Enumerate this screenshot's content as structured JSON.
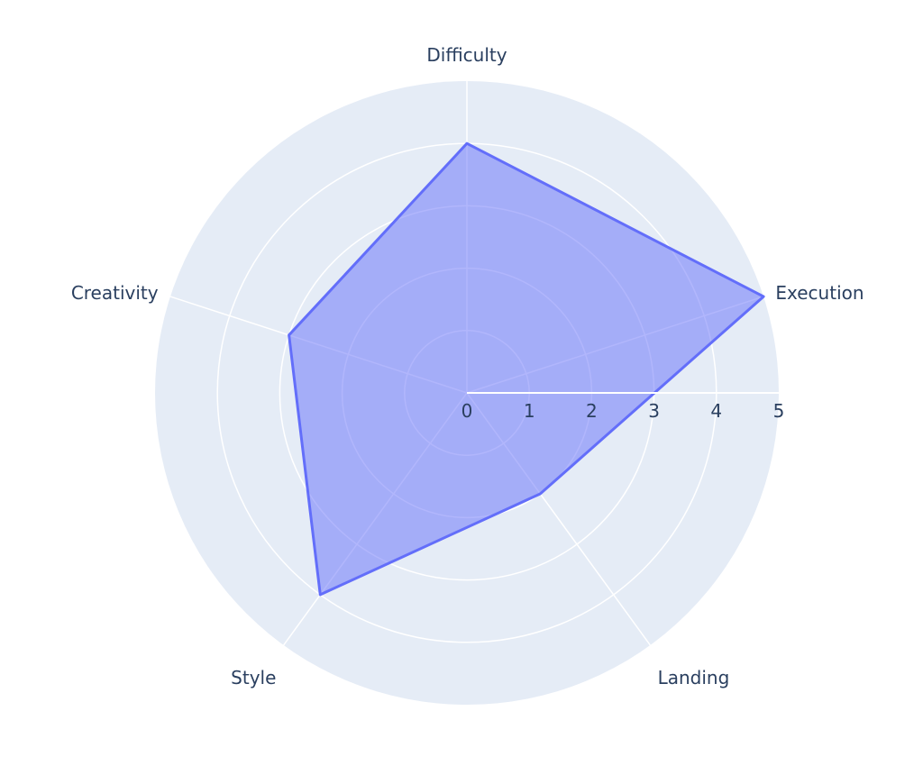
{
  "chart_data": {
    "type": "radar",
    "title": "",
    "categories": [
      "Difficulty",
      "Execution",
      "Landing",
      "Style",
      "Creativity"
    ],
    "series": [
      {
        "values": [
          4,
          5,
          2,
          4,
          3
        ]
      }
    ],
    "radial_range": [
      0,
      5
    ],
    "radial_ticks": [
      "0",
      "1",
      "2",
      "3",
      "4",
      "5"
    ],
    "grid": true,
    "colors": {
      "background": "#e5ecf6",
      "grid": "#ffffff",
      "line": "#636efa",
      "fill": "#636efa",
      "text": "#2a3f5f"
    }
  }
}
